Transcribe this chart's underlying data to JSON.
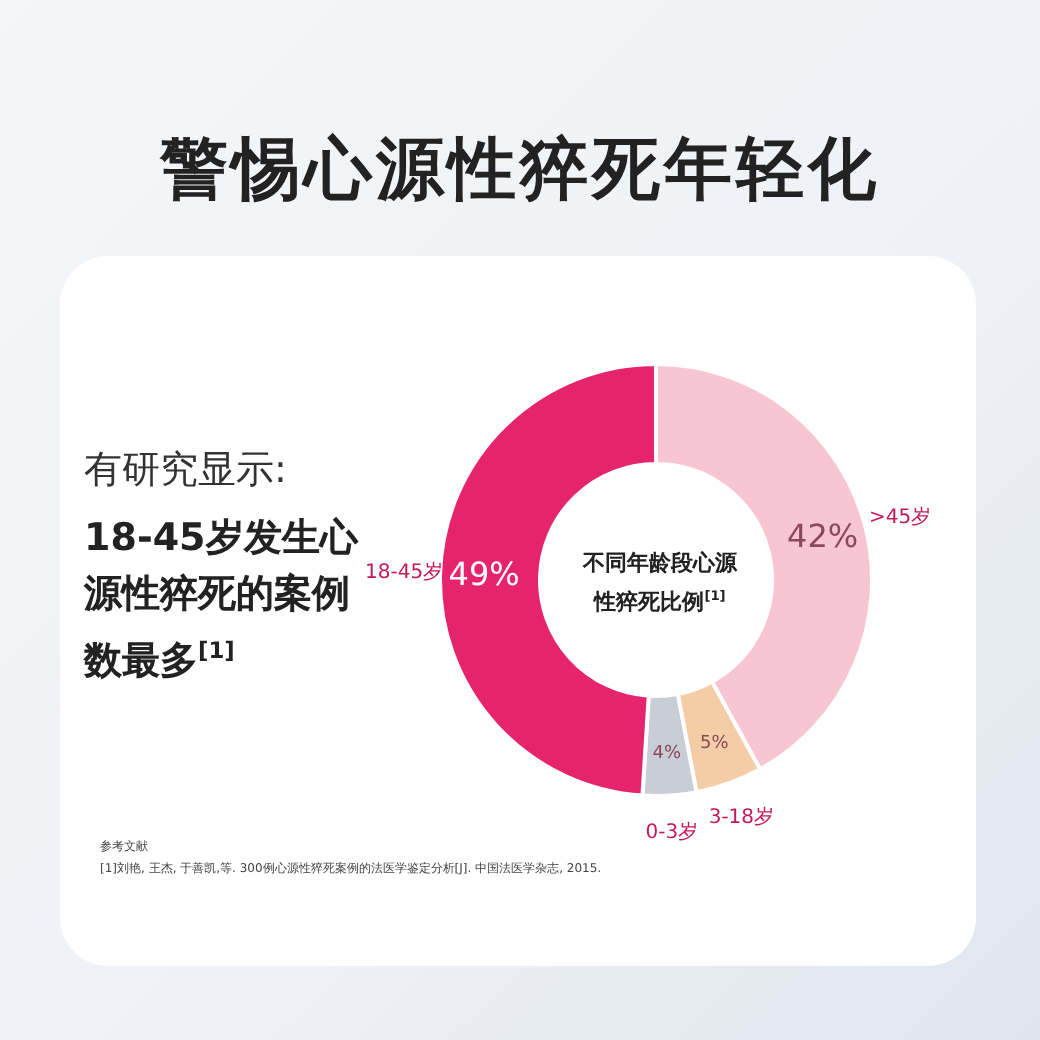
{
  "chart_data": {
    "type": "donut",
    "title": "警惕心源性猝死年轻化",
    "categories": [
      ">45岁",
      "3-18岁",
      "0-3岁",
      "18-45岁"
    ],
    "values": [
      42,
      5,
      4,
      49
    ],
    "value_labels": [
      "42%",
      "5%",
      "4%",
      "49%"
    ],
    "colors": [
      "#f8c6d3",
      "#f4cda6",
      "#c9cdd6",
      "#e6246e"
    ],
    "legend": false,
    "annotations": [
      "有研究显示:",
      "18-45岁发生心源性猝死的案例数最多$^{[1]}$",
      "不同年龄段心源性猝死比例$^{[1]}$",
      "参考文献",
      "[1]刘艳, 王杰, 于善凯,等. 300例心源性猝死案例的法医学鉴定分析[J]. 中国法医学杂志, 2015."
    ]
  }
}
